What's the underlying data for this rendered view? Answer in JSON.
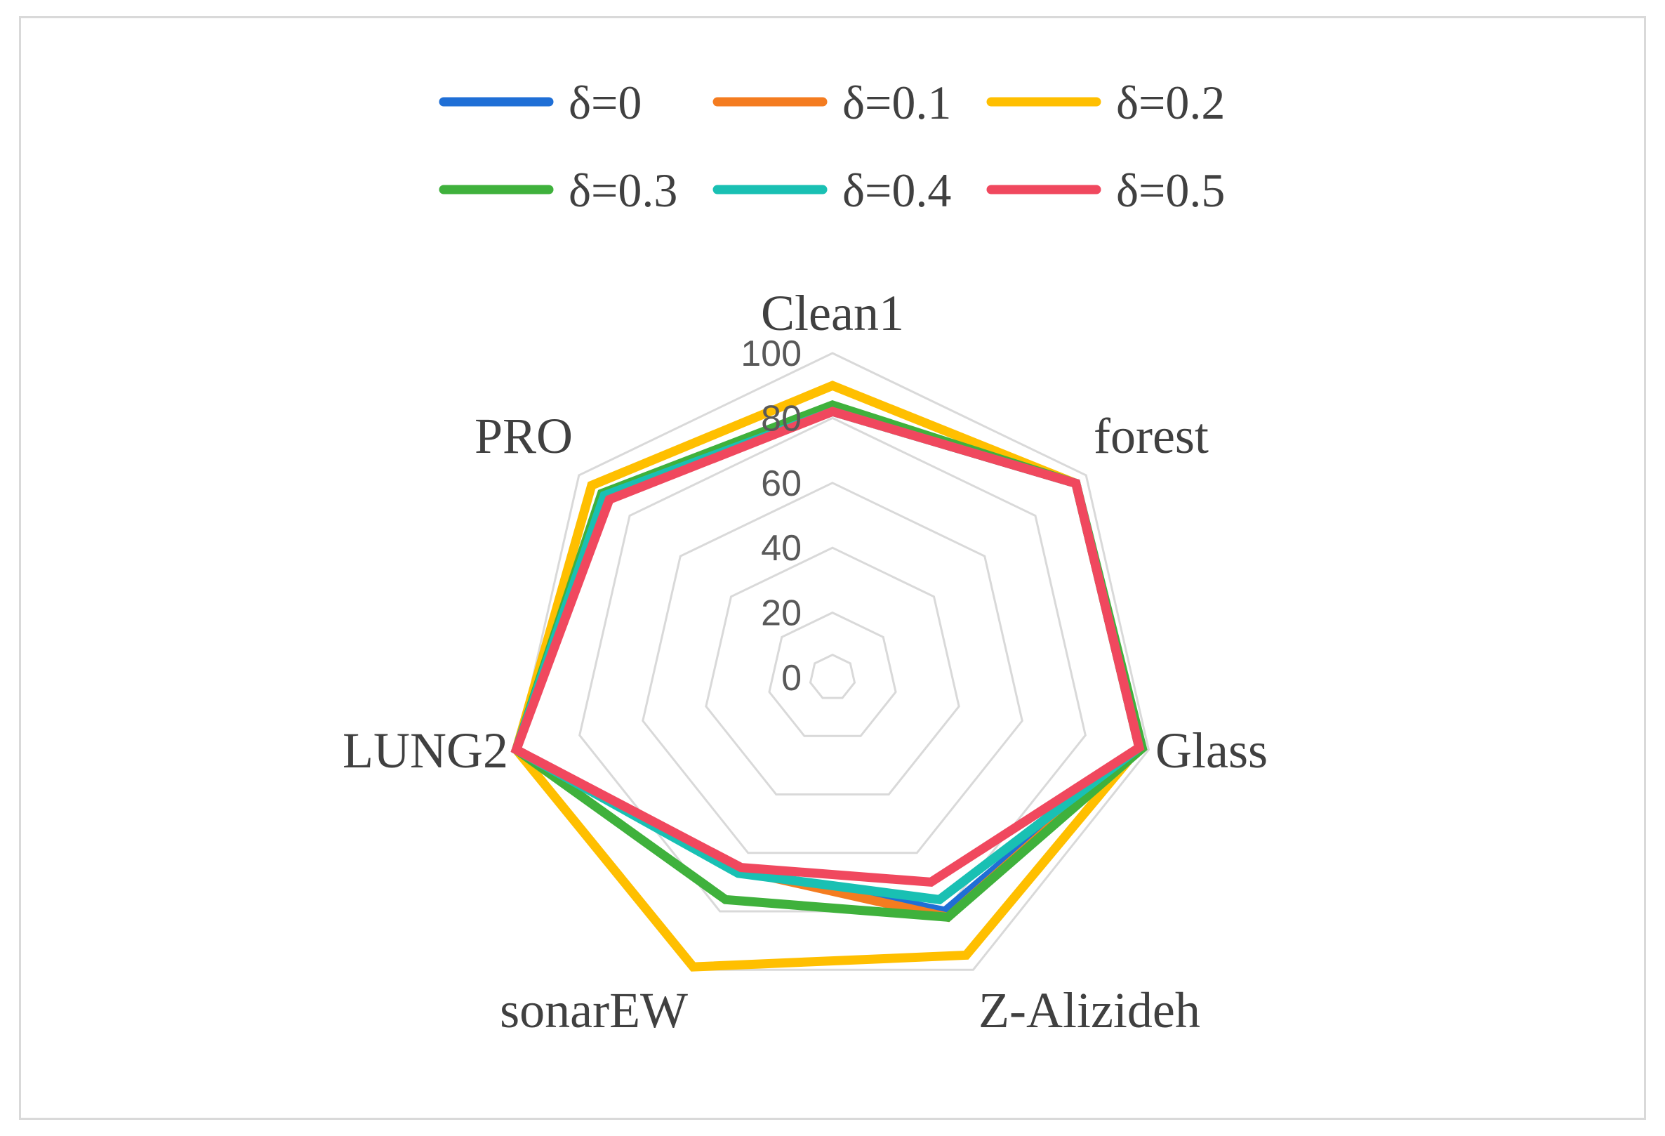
{
  "chart_data": {
    "type": "radar",
    "axes": [
      "Clean1",
      "forest",
      "Glass",
      "Z-Alizideh",
      "sonarEW",
      "LUNG2",
      "PRO"
    ],
    "r_ticks": [
      "0",
      "20",
      "40",
      "60",
      "80",
      "100"
    ],
    "r_range": [
      0,
      100
    ],
    "grid": true,
    "legend_position": "top",
    "series": [
      {
        "name": "δ=0",
        "color": "#1f6fd6",
        "values": [
          82,
          96,
          97,
          80,
          66,
          100,
          90
        ]
      },
      {
        "name": "δ=0.1",
        "color": "#f47c20",
        "values": [
          82,
          96,
          97,
          82,
          66,
          100,
          90
        ]
      },
      {
        "name": "δ=0.2",
        "color": "#ffbf00",
        "values": [
          90,
          96,
          97,
          95,
          99,
          100,
          95
        ]
      },
      {
        "name": "δ=0.3",
        "color": "#3fb13c",
        "values": [
          84,
          96,
          98,
          82,
          76,
          100,
          91
        ]
      },
      {
        "name": "δ=0.4",
        "color": "#19c0b3",
        "values": [
          82,
          96,
          97,
          76,
          67,
          100,
          90
        ]
      },
      {
        "name": "δ=0.5",
        "color": "#f0485e",
        "values": [
          82,
          96,
          97,
          70,
          65,
          100,
          88
        ]
      }
    ]
  }
}
